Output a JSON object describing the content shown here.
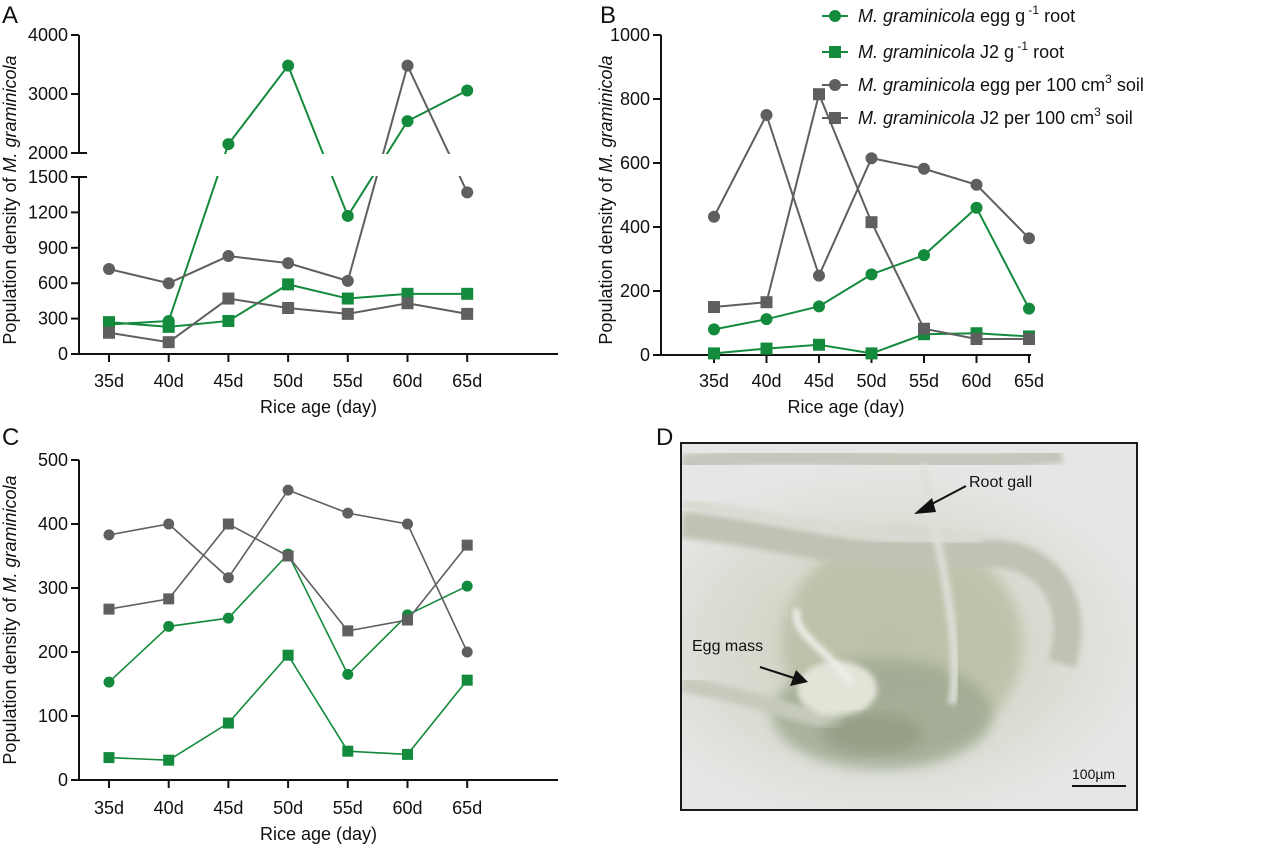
{
  "colors": {
    "green": "#148a3c",
    "gray": "#5f5f60",
    "axis": "#111111"
  },
  "legend": {
    "placement": "top-right",
    "items": [
      {
        "italic": "M. graminicola",
        "text": " egg g",
        "sup": " -1",
        "tail": " root",
        "marker": "circle",
        "color": "green"
      },
      {
        "italic": "M. graminicola",
        "text": " J2 g",
        "sup": " -1",
        "tail": " root",
        "marker": "square",
        "color": "green"
      },
      {
        "italic": "M. graminicola",
        "text": " egg per 100 cm",
        "sup": "3",
        "tail": " soil",
        "marker": "circle",
        "color": "gray"
      },
      {
        "italic": "M. graminicola",
        "text": " J2 per 100 cm",
        "sup": "3",
        "tail": " soil",
        "marker": "square",
        "color": "gray"
      }
    ]
  },
  "chart_data": [
    {
      "panel": "A",
      "type": "line",
      "categories": [
        "35d",
        "40d",
        "45d",
        "50d",
        "55d",
        "60d",
        "65d"
      ],
      "xlabel": "Rice age (day)",
      "ylabel_prefix": "Population density of ",
      "ylabel_italic": "M. graminicola",
      "broken_axis": true,
      "ylim_lower": [
        0,
        1500
      ],
      "ylim_upper": [
        2000,
        4000
      ],
      "yticks_lower": [
        0,
        300,
        600,
        900,
        1200,
        1500
      ],
      "yticks_upper": [
        2000,
        3000,
        4000
      ],
      "grid": false,
      "series": [
        {
          "name": "M. graminicola egg g-1 root",
          "marker": "circle",
          "color": "green",
          "values": [
            250,
            280,
            2150,
            3480,
            1170,
            2540,
            3060
          ]
        },
        {
          "name": "M. graminicola J2 g-1 root",
          "marker": "square",
          "color": "green",
          "values": [
            270,
            230,
            280,
            590,
            470,
            510,
            510
          ]
        },
        {
          "name": "M. graminicola egg per 100 cm3 soil",
          "marker": "circle",
          "color": "gray",
          "values": [
            720,
            600,
            830,
            770,
            620,
            3480,
            1370
          ]
        },
        {
          "name": "M. graminicola J2 per 100 cm3 soil",
          "marker": "square",
          "color": "gray",
          "values": [
            180,
            100,
            470,
            390,
            340,
            430,
            340
          ]
        }
      ]
    },
    {
      "panel": "B",
      "type": "line",
      "categories": [
        "35d",
        "40d",
        "45d",
        "50d",
        "55d",
        "60d",
        "65d"
      ],
      "xlabel": "Rice age (day)",
      "ylabel_prefix": "Population density of ",
      "ylabel_italic": "M. graminicola",
      "ylim": [
        0,
        1000
      ],
      "yticks": [
        0,
        200,
        400,
        600,
        800,
        1000
      ],
      "grid": false,
      "series": [
        {
          "name": "M. graminicola egg g-1 root",
          "marker": "circle",
          "color": "green",
          "values": [
            80,
            112,
            152,
            252,
            312,
            460,
            145
          ]
        },
        {
          "name": "M. graminicola J2 g-1 root",
          "marker": "square",
          "color": "green",
          "values": [
            5,
            20,
            32,
            5,
            65,
            68,
            58
          ]
        },
        {
          "name": "M. graminicola egg per 100 cm3 soil",
          "marker": "circle",
          "color": "gray",
          "values": [
            432,
            750,
            248,
            615,
            582,
            532,
            365
          ]
        },
        {
          "name": "M. graminicola J2 per 100 cm3 soil",
          "marker": "square",
          "color": "gray",
          "values": [
            150,
            165,
            815,
            415,
            82,
            50,
            50
          ]
        }
      ]
    },
    {
      "panel": "C",
      "type": "line",
      "categories": [
        "35d",
        "40d",
        "45d",
        "50d",
        "55d",
        "60d",
        "65d"
      ],
      "xlabel": "Rice age (day)",
      "ylabel_prefix": "Population density of ",
      "ylabel_italic": "M. graminicola",
      "ylim": [
        0,
        500
      ],
      "yticks": [
        0,
        100,
        200,
        300,
        400,
        500
      ],
      "grid": false,
      "series": [
        {
          "name": "M. graminicola egg g-1 root",
          "marker": "circle",
          "color": "green",
          "values": [
            153,
            240,
            253,
            353,
            165,
            258,
            303
          ]
        },
        {
          "name": "M. graminicola J2 g-1 root",
          "marker": "square",
          "color": "green",
          "values": [
            35,
            31,
            89,
            195,
            45,
            40,
            156
          ]
        },
        {
          "name": "M. graminicola egg per 100 cm3 soil",
          "marker": "circle",
          "color": "gray",
          "values": [
            383,
            400,
            316,
            453,
            417,
            400,
            200
          ]
        },
        {
          "name": "M. graminicola J2 per 100 cm3 soil",
          "marker": "square",
          "color": "gray",
          "values": [
            267,
            283,
            400,
            350,
            233,
            250,
            367
          ]
        }
      ]
    }
  ],
  "panels": {
    "a_label": "A",
    "b_label": "B",
    "c_label": "C",
    "d_label": "D"
  },
  "photo": {
    "root_gall_label": "Root gall",
    "egg_mass_label": "Egg mass",
    "scale_label": "100µm"
  }
}
